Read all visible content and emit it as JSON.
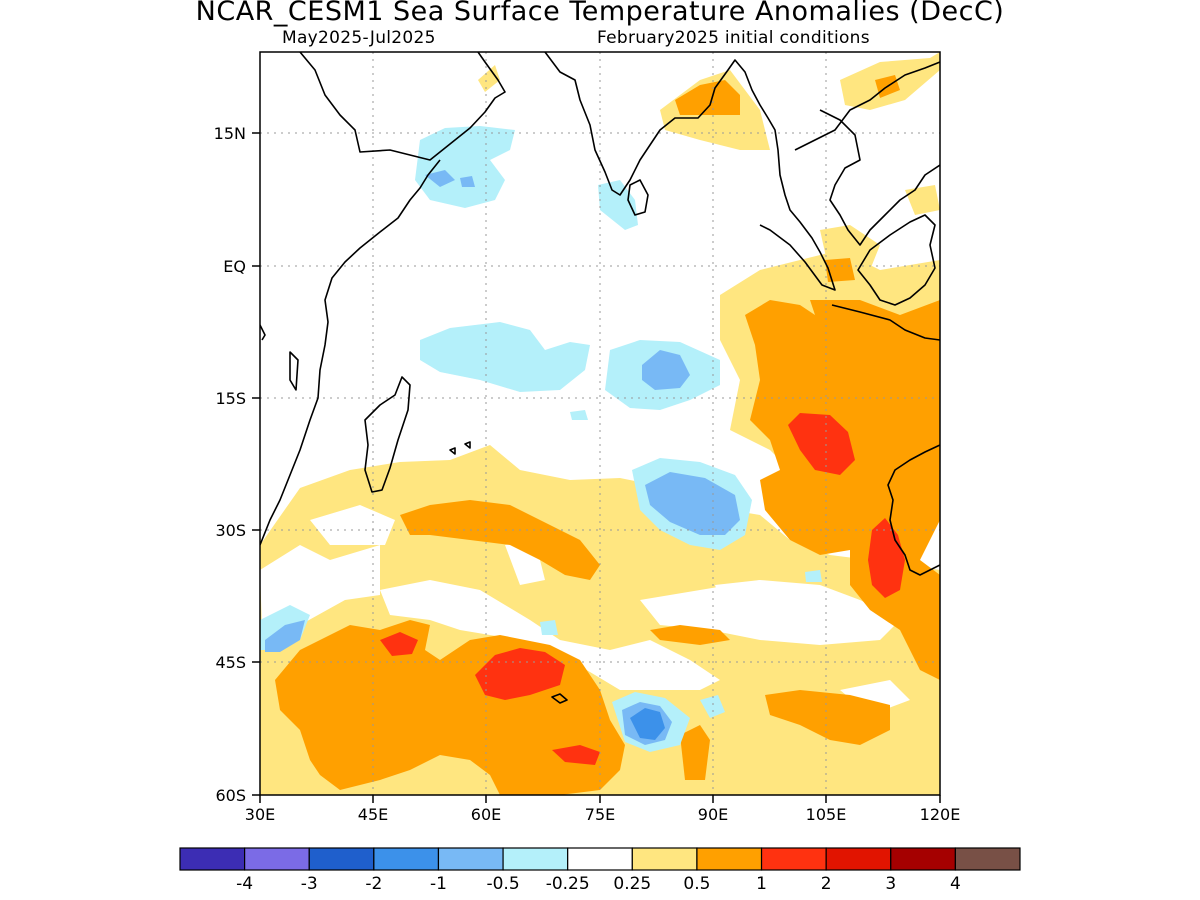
{
  "title": "NCAR_CESM1 Sea Surface Temperature Anomalies (DecC)",
  "subtitle_left": "May2025-Jul2025",
  "subtitle_right": "February2025 initial conditions",
  "map": {
    "lat_labels": [
      "15N",
      "EQ",
      "15S",
      "30S",
      "45S",
      "60S"
    ],
    "lon_labels": [
      "30E",
      "45E",
      "60E",
      "75E",
      "90E",
      "105E",
      "120E"
    ],
    "lon_range": [
      30,
      120
    ],
    "lat_range": [
      -60,
      24
    ],
    "grid": "dotted",
    "projection": "lat-lon"
  },
  "colorbar": {
    "colors": [
      "#3c2db4",
      "#7b6be6",
      "#1f5fcc",
      "#3c91ea",
      "#78b9f5",
      "#b4f0fa",
      "#ffffff",
      "#ffe680",
      "#ffa000",
      "#ff3210",
      "#e11400",
      "#a50000",
      "#785046"
    ],
    "labels": [
      "-4",
      "-3",
      "-2",
      "-1",
      "-0.5",
      "-0.25",
      "0.25",
      "0.5",
      "1",
      "2",
      "3",
      "4"
    ]
  }
}
